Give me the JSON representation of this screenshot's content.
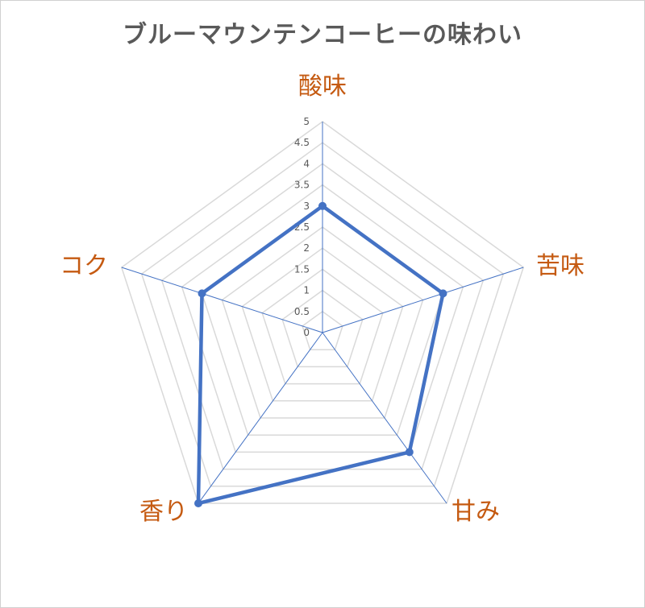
{
  "chart_data": {
    "type": "radar",
    "title": "ブルーマウンテンコーヒーの味わい",
    "categories": [
      "酸味",
      "苦味",
      "甘み",
      "香り",
      "コク"
    ],
    "series": [
      {
        "values": [
          3,
          3,
          3.5,
          5,
          3
        ],
        "color": "#4472c4"
      }
    ],
    "rlim": [
      0,
      5
    ],
    "tick_step": 0.5,
    "ticks": [
      "0",
      "0.5",
      "1",
      "1.5",
      "2",
      "2.5",
      "3",
      "3.5",
      "4",
      "4.5",
      "5"
    ],
    "grid": true,
    "legend": "none",
    "colors": {
      "grid": "#d9d9d9",
      "spoke": "#4472c4",
      "category_label": "#c55a11",
      "tick_label": "#595959",
      "title": "#595959"
    }
  }
}
